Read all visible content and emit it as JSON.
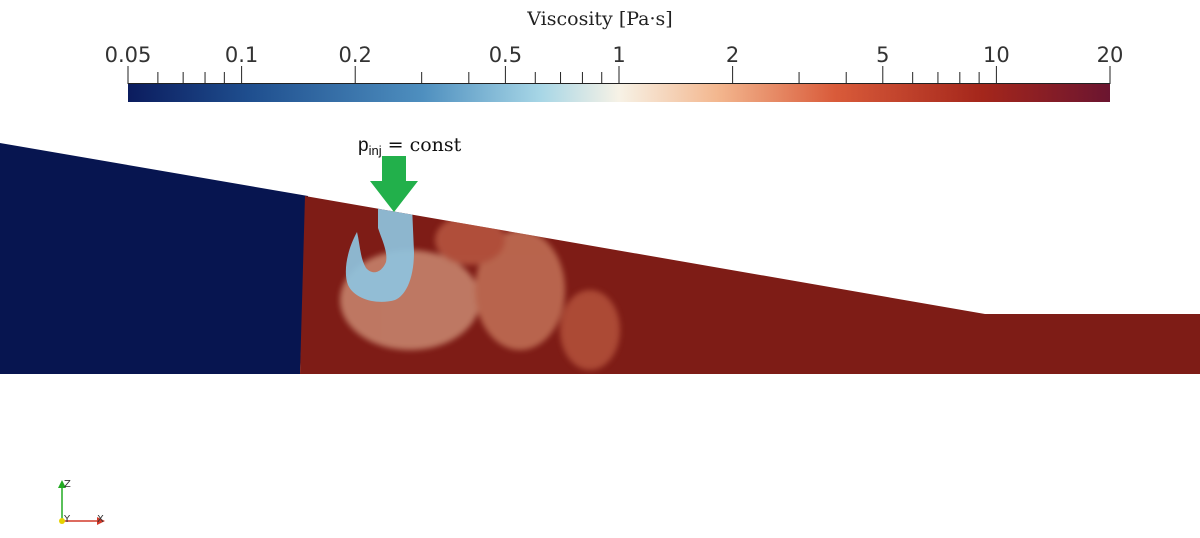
{
  "colorbar": {
    "title": "Viscosity [Pa·s]",
    "scale": "log",
    "range": [
      0.05,
      20
    ],
    "major_ticks": [
      "0.05",
      "0.1",
      "0.2",
      "0.5",
      "1",
      "2",
      "5",
      "10",
      "20"
    ],
    "major_values": [
      0.05,
      0.1,
      0.2,
      0.5,
      1,
      2,
      5,
      10,
      20
    ],
    "minor_values": [
      0.06,
      0.07,
      0.08,
      0.09,
      0.3,
      0.4,
      0.6,
      0.7,
      0.8,
      0.9,
      3,
      4,
      6,
      7,
      8,
      9
    ],
    "colormap": [
      "#0b1c5e",
      "#1f4f8f",
      "#4e8fbf",
      "#a7d6e6",
      "#f7f2e6",
      "#f3b78f",
      "#d95b3a",
      "#a4261b",
      "#6b1530"
    ]
  },
  "annotation": {
    "label_main": "p",
    "label_sub": "inj",
    "label_rest": " = const",
    "arrow_color": "#22b04b",
    "meaning": "constant injection pressure inlet"
  },
  "domain_colors": {
    "low_viscosity": "#071550",
    "injected_fluid": "#8ec3de",
    "mixed_zone": "#efb38f",
    "high_viscosity": "#8a1f17"
  },
  "axes_triad": {
    "z": "Z",
    "y": "Y",
    "x": "X",
    "colors": {
      "z": "#22aa22",
      "y": "#e6d200",
      "x": "#d23a2a"
    }
  }
}
